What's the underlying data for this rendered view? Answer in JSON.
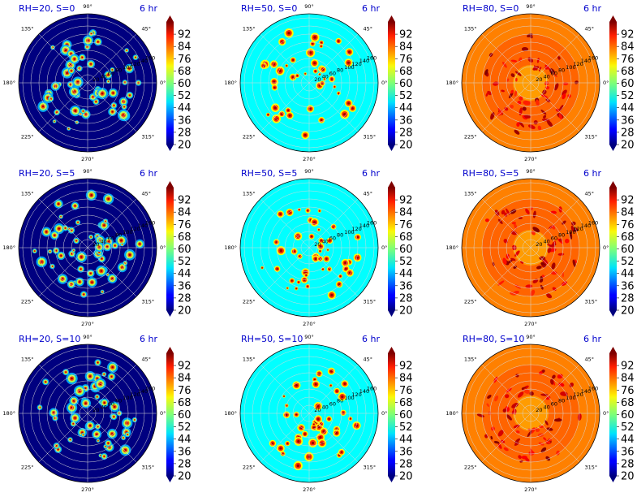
{
  "chart_data": {
    "type": "heatmap",
    "subtype": "polar contour",
    "grid": {
      "rows": [
        "S=0",
        "S=5",
        "S=10"
      ],
      "cols": [
        "RH=20",
        "RH=50",
        "RH=80"
      ]
    },
    "panels": [
      {
        "title": "RH=20, S=0",
        "time": "6 hr",
        "background": 20
      },
      {
        "title": "RH=50, S=0",
        "time": "6 hr",
        "background": 50
      },
      {
        "title": "RH=80, S=0",
        "time": "6 hr",
        "background": 80
      },
      {
        "title": "RH=20, S=5",
        "time": "6 hr",
        "background": 20
      },
      {
        "title": "RH=50, S=5",
        "time": "6 hr",
        "background": 50
      },
      {
        "title": "RH=80, S=5",
        "time": "6 hr",
        "background": 80
      },
      {
        "title": "RH=20, S=10",
        "time": "6 hr",
        "background": 20
      },
      {
        "title": "RH=50, S=10",
        "time": "6 hr",
        "background": 50
      },
      {
        "title": "RH=80, S=10",
        "time": "6 hr",
        "background": 80
      }
    ],
    "angular_ticks": [
      "0°",
      "45°",
      "90°",
      "135°",
      "180°",
      "225°",
      "270°",
      "315°"
    ],
    "radial_ticks": [
      "20",
      "40",
      "60",
      "80",
      "100",
      "120",
      "140",
      "160"
    ],
    "radial_max": 170,
    "colorbar": {
      "ticks": [
        "20",
        "28",
        "36",
        "44",
        "52",
        "60",
        "68",
        "76",
        "84",
        "92"
      ],
      "min": 20,
      "max": 100,
      "colormap": "jet",
      "extend": "both"
    }
  }
}
